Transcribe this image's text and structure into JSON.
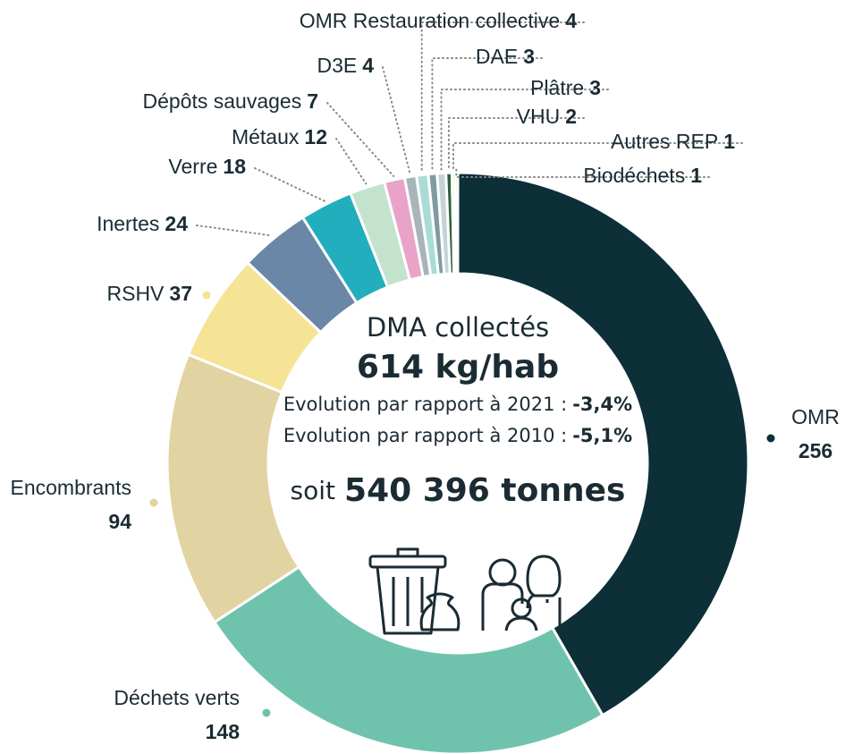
{
  "chart_data": {
    "type": "donut",
    "categories": [
      "OMR",
      "Déchets verts",
      "Encombrants",
      "RSHV",
      "Inertes",
      "Verre",
      "Métaux",
      "Dépôts sauvages",
      "D3E",
      "OMR Restauration collective",
      "DAE",
      "Plâtre",
      "VHU",
      "Autres REP",
      "Biodéchets"
    ],
    "values": [
      256,
      148,
      94,
      37,
      24,
      18,
      12,
      7,
      4,
      4,
      3,
      3,
      2,
      1,
      1
    ],
    "colors": [
      "#0c2f38",
      "#6fc3ad",
      "#e2d3a2",
      "#f5e496",
      "#6a87a8",
      "#22aebd",
      "#c4e3cc",
      "#e9a3c8",
      "#a9b4b9",
      "#a9dcd7",
      "#7f9aa4",
      "#c6d3d6",
      "#2d5e3c",
      "#8fbf5a",
      "#e8d24e"
    ],
    "center": {
      "title": "DMA collectés",
      "total": "614 kg/hab",
      "evolution_2021_label": "Evolution par rapport à 2021 :",
      "evolution_2021_value": "-3,4%",
      "evolution_2010_label": "Evolution par rapport à 2010 :",
      "evolution_2010_value": "-5,1%",
      "tonnage_prefix": "soit",
      "tonnage": "540 396 tonnes"
    }
  }
}
